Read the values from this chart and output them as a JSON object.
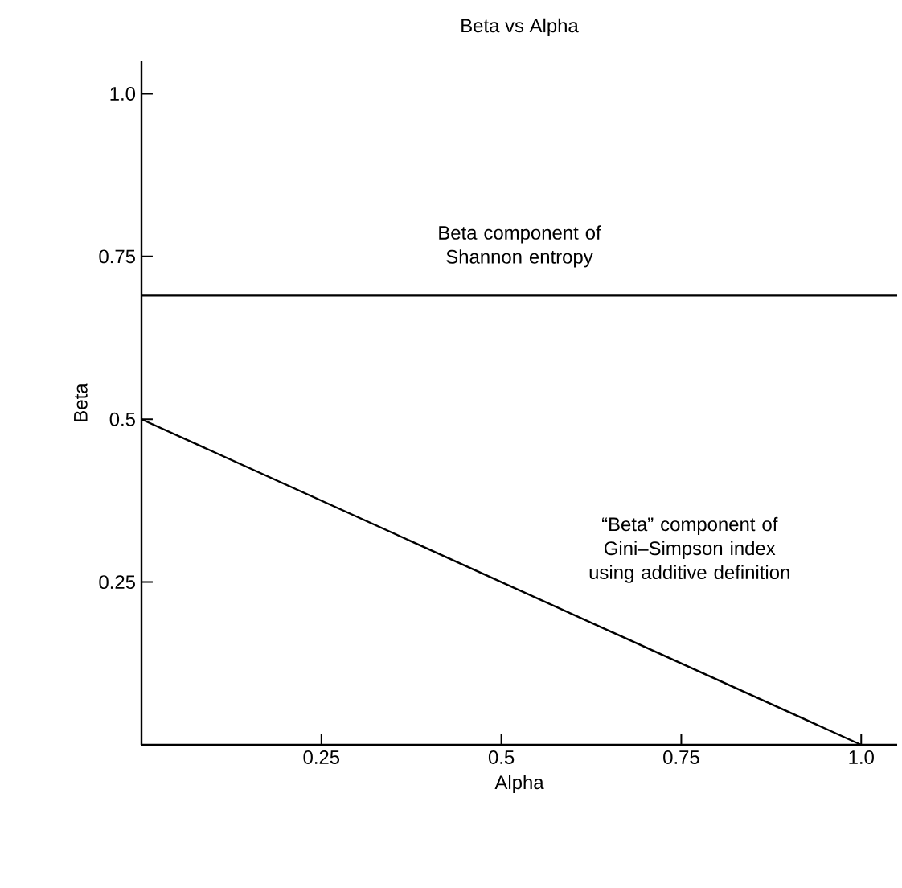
{
  "chart_data": {
    "type": "line",
    "title": "Beta vs Alpha",
    "xlabel": "Alpha",
    "ylabel": "Beta",
    "xlim": [
      0,
      1.05
    ],
    "ylim": [
      0,
      1.05
    ],
    "xticks": [
      0.25,
      0.5,
      0.75,
      {
        "value": 1,
        "label": "1.0"
      }
    ],
    "yticks": [
      0.25,
      0.5,
      0.75,
      {
        "value": 1,
        "label": "1.0"
      }
    ],
    "series": [
      {
        "name": "Beta component of Shannon entropy",
        "color": "#000000",
        "x": [
          0,
          1.05
        ],
        "values": [
          0.69,
          0.69
        ]
      },
      {
        "name": "“Beta” component of Gini–Simpson index using additive definition",
        "color": "#000000",
        "x": [
          0,
          1
        ],
        "values": [
          0.5,
          0
        ]
      }
    ],
    "legend": false,
    "grid": false
  }
}
